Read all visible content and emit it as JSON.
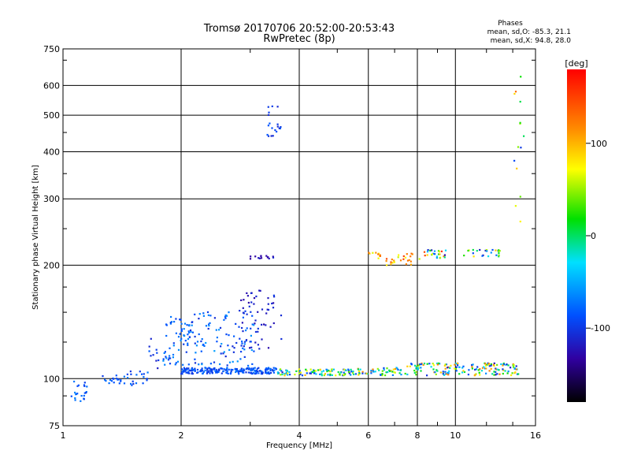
{
  "chart_data": {
    "type": "scatter",
    "title": "Tromsø 20170706 20:52:00-20:53:43",
    "subtitle": "RwPretec (8p)",
    "xlabel": "Frequency [MHz]",
    "ylabel": "Stationary phase Virtual Height [km]",
    "x_scale": "log",
    "y_scale": "log",
    "xlim": [
      1,
      16
    ],
    "ylim": [
      75,
      750
    ],
    "x_ticks": [
      "1",
      "2",
      "4",
      "6",
      "8",
      "10",
      "16"
    ],
    "y_ticks": [
      "75",
      "100",
      "200",
      "300",
      "400",
      "500",
      "600",
      "750"
    ],
    "x_tick_values": [
      1,
      2,
      4,
      6,
      8,
      10,
      16
    ],
    "y_tick_values": [
      75,
      100,
      200,
      300,
      400,
      500,
      600,
      750
    ],
    "grid": true,
    "stats": {
      "heading": "Phases",
      "line_o": "mean, sd,O: -85.3, 21.1",
      "line_x": "mean, sd,X:  94.8, 28.0"
    },
    "colorbar": {
      "unit": "[deg]",
      "tick_labels": [
        "100",
        "0",
        "-100"
      ],
      "tick_values": [
        100,
        0,
        -100
      ],
      "range": [
        -180,
        180
      ]
    },
    "clusters": [
      {
        "f": [
          1.05,
          1.15
        ],
        "h": [
          86,
          100
        ],
        "n": 22,
        "p": [
          -100,
          -60
        ]
      },
      {
        "f": [
          1.25,
          1.4
        ],
        "h": [
          96,
          102
        ],
        "n": 14,
        "p": [
          -100,
          -70
        ]
      },
      {
        "f": [
          1.4,
          1.7
        ],
        "h": [
          96,
          106
        ],
        "n": 22,
        "p": [
          -110,
          -70
        ]
      },
      {
        "f": [
          1.62,
          1.78
        ],
        "h": [
          106,
          128
        ],
        "n": 10,
        "p": [
          -120,
          -80
        ]
      },
      {
        "f": [
          1.8,
          2.1
        ],
        "h": [
          108,
          148
        ],
        "n": 60,
        "p": [
          -100,
          -60
        ]
      },
      {
        "f": [
          2.0,
          3.5
        ],
        "h": [
          103,
          107
        ],
        "n": 200,
        "p": [
          -105,
          -70
        ]
      },
      {
        "f": [
          2.1,
          3.1
        ],
        "h": [
          108,
          152
        ],
        "n": 110,
        "p": [
          -110,
          -55
        ]
      },
      {
        "f": [
          2.8,
          3.6
        ],
        "h": [
          120,
          172
        ],
        "n": 50,
        "p": [
          -130,
          -100
        ]
      },
      {
        "f": [
          3.0,
          3.55
        ],
        "h": [
          208,
          212
        ],
        "n": 14,
        "p": [
          -140,
          -110
        ]
      },
      {
        "f": [
          3.3,
          3.6
        ],
        "h": [
          430,
          540
        ],
        "n": 20,
        "p": [
          -110,
          -80
        ]
      },
      {
        "f": [
          3.5,
          5.5
        ],
        "h": [
          102,
          106
        ],
        "n": 100,
        "p": [
          -120,
          110
        ]
      },
      {
        "f": [
          5.5,
          7.5
        ],
        "h": [
          102,
          107
        ],
        "n": 55,
        "p": [
          -100,
          120
        ]
      },
      {
        "f": [
          6.0,
          6.5
        ],
        "h": [
          208,
          216
        ],
        "n": 10,
        "p": [
          60,
          140
        ]
      },
      {
        "f": [
          6.6,
          8.1
        ],
        "h": [
          200,
          215
        ],
        "n": 25,
        "p": [
          60,
          150
        ]
      },
      {
        "f": [
          7.5,
          14.5
        ],
        "h": [
          102,
          110
        ],
        "n": 160,
        "p": [
          -120,
          130
        ]
      },
      {
        "f": [
          8.3,
          9.5
        ],
        "h": [
          209,
          220
        ],
        "n": 25,
        "p": [
          -140,
          160
        ]
      },
      {
        "f": [
          10.5,
          13.0
        ],
        "h": [
          210,
          220
        ],
        "n": 25,
        "p": [
          -120,
          100
        ]
      },
      {
        "f": [
          14.0,
          15.0
        ],
        "h": [
          250,
          650
        ],
        "n": 14,
        "p": [
          -120,
          130
        ]
      }
    ]
  }
}
